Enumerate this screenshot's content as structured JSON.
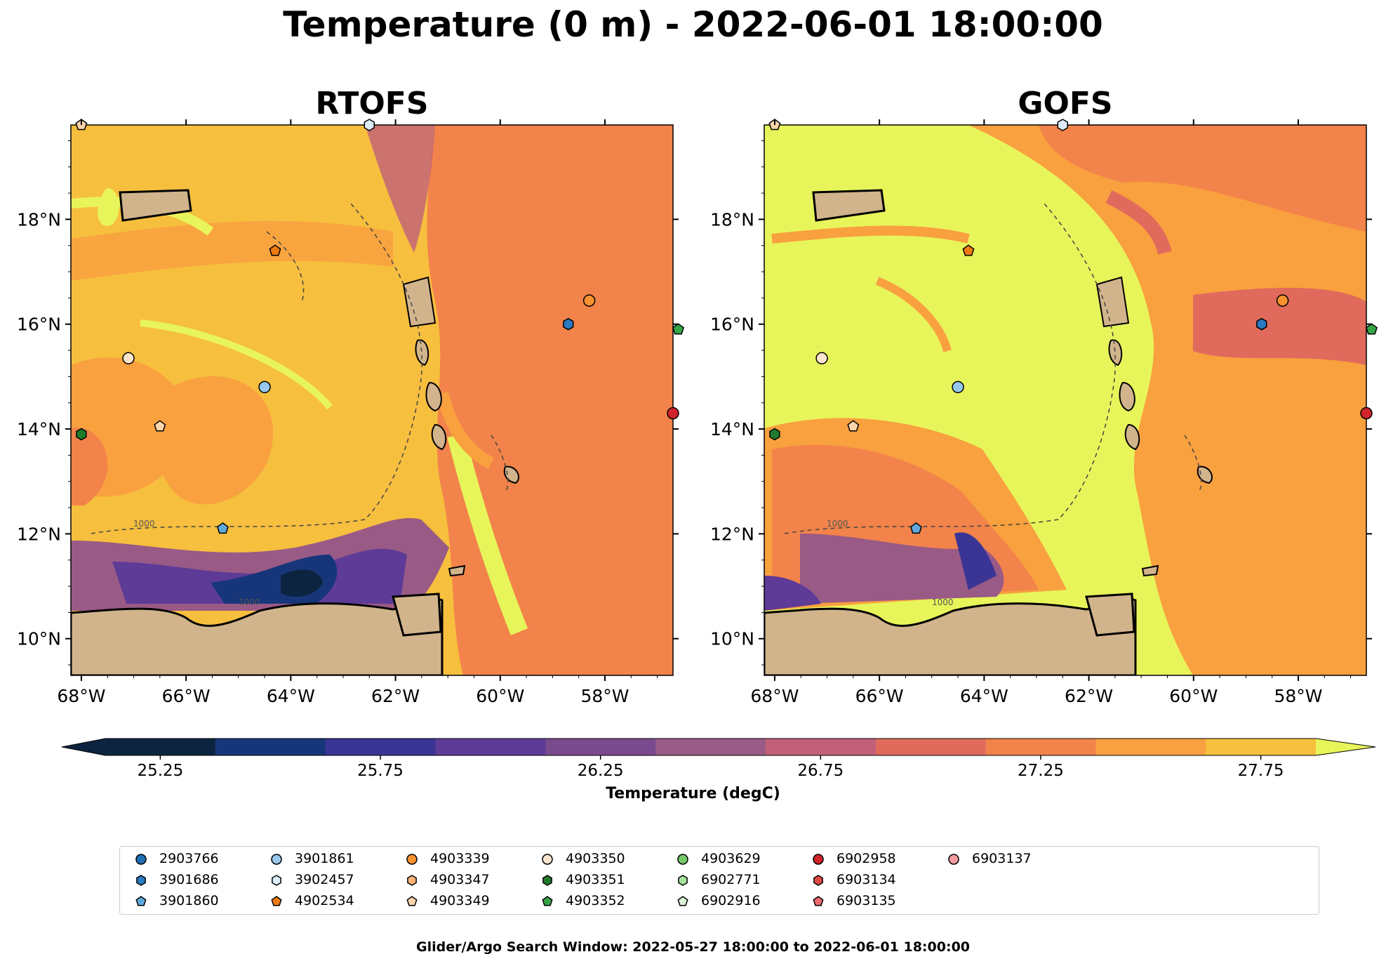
{
  "title": "Temperature (0 m) - 2022-06-01 18:00:00",
  "panels": [
    {
      "title": "RTOFS"
    },
    {
      "title": "GOFS"
    }
  ],
  "axes": {
    "x_ticks": [
      "68°W",
      "66°W",
      "64°W",
      "62°W",
      "60°W",
      "58°W"
    ],
    "y_ticks": [
      "18°N",
      "16°N",
      "14°N",
      "12°N",
      "10°N"
    ],
    "x_range": [
      -68.2,
      -56.7
    ],
    "y_range": [
      9.3,
      19.8
    ]
  },
  "contour_label": "1000",
  "colorbar": {
    "label": "Temperature (degC)",
    "ticks": [
      "25.25",
      "25.75",
      "26.25",
      "26.75",
      "27.25",
      "27.75"
    ],
    "colors": [
      "#0d2440",
      "#17367a",
      "#3a3595",
      "#5e3b96",
      "#7a4a8e",
      "#995a86",
      "#c2607a",
      "#e06b5c",
      "#f2834a",
      "#f9a03f",
      "#f6bf3e",
      "#e8f55a"
    ],
    "extend": "both"
  },
  "legend": {
    "items": [
      {
        "label": "2903766",
        "marker": "circle",
        "color": "#1f6fb4"
      },
      {
        "label": "3901686",
        "marker": "hexagon",
        "color": "#2a7ac0"
      },
      {
        "label": "3901860",
        "marker": "pentagon",
        "color": "#5fa8dc"
      },
      {
        "label": "3901861",
        "marker": "circle",
        "color": "#98c8ec"
      },
      {
        "label": "3902457",
        "marker": "hexagon",
        "color": "#dcecf8"
      },
      {
        "label": "4902534",
        "marker": "pentagon",
        "color": "#f07a12"
      },
      {
        "label": "4903339",
        "marker": "circle",
        "color": "#f7922e"
      },
      {
        "label": "4903347",
        "marker": "hexagon",
        "color": "#fbb37a"
      },
      {
        "label": "4903349",
        "marker": "pentagon",
        "color": "#fcd5aa"
      },
      {
        "label": "4903350",
        "marker": "circle",
        "color": "#fde4cc"
      },
      {
        "label": "4903351",
        "marker": "hexagon",
        "color": "#217a2c"
      },
      {
        "label": "4903352",
        "marker": "pentagon",
        "color": "#35a447"
      },
      {
        "label": "4903629",
        "marker": "circle",
        "color": "#74c86a"
      },
      {
        "label": "6902771",
        "marker": "hexagon",
        "color": "#a8e3a0"
      },
      {
        "label": "6902916",
        "marker": "pentagon",
        "color": "#daf3d4"
      },
      {
        "label": "6902958",
        "marker": "circle",
        "color": "#d1232a"
      },
      {
        "label": "6903134",
        "marker": "hexagon",
        "color": "#e04848"
      },
      {
        "label": "6903135",
        "marker": "pentagon",
        "color": "#ee6a70"
      },
      {
        "label": "6903137",
        "marker": "circle",
        "color": "#f39aa0"
      }
    ]
  },
  "platforms": [
    {
      "id": "4903349",
      "lon": -68.0,
      "lat": 19.8,
      "marker": "pentagon"
    },
    {
      "id": "3902457",
      "lon": -62.5,
      "lat": 19.8,
      "marker": "hexagon"
    },
    {
      "id": "4902534",
      "lon": -64.3,
      "lat": 17.4,
      "marker": "pentagon"
    },
    {
      "id": "4903339",
      "lon": -58.3,
      "lat": 16.45,
      "marker": "circle"
    },
    {
      "id": "3901686",
      "lon": -58.7,
      "lat": 16.0,
      "marker": "hexagon"
    },
    {
      "id": "4903350",
      "lon": -67.1,
      "lat": 15.35,
      "marker": "circle"
    },
    {
      "id": "3901861",
      "lon": -64.5,
      "lat": 14.8,
      "marker": "circle"
    },
    {
      "id": "4903349",
      "lon": -66.5,
      "lat": 14.05,
      "marker": "pentagon"
    },
    {
      "id": "4903351",
      "lon": -68.0,
      "lat": 13.9,
      "marker": "hexagon"
    },
    {
      "id": "6902958",
      "lon": -56.7,
      "lat": 14.3,
      "marker": "circle"
    },
    {
      "id": "4903352",
      "lon": -56.6,
      "lat": 15.9,
      "marker": "pentagon"
    },
    {
      "id": "3901860",
      "lon": -65.3,
      "lat": 12.1,
      "marker": "pentagon"
    }
  ],
  "footer": "Glider/Argo Search Window: 2022-05-27 18:00:00 to 2022-06-01 18:00:00"
}
